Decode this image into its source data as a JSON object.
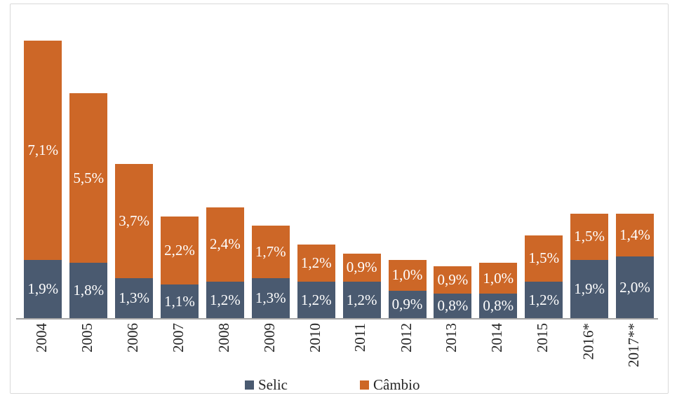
{
  "chart_data": {
    "type": "bar",
    "stacked": true,
    "title": "",
    "xlabel": "",
    "ylabel": "",
    "ylim": [
      0,
      9.5
    ],
    "grid": false,
    "legend_position": "bottom",
    "value_format": "percent, comma decimal",
    "categories": [
      "2004",
      "2005",
      "2006",
      "2007",
      "2008",
      "2009",
      "2010",
      "2011",
      "2012",
      "2013",
      "2014",
      "2015",
      "2016*",
      "2017**"
    ],
    "series": [
      {
        "name": "Selic",
        "color": "#4A5A70",
        "values": [
          1.9,
          1.8,
          1.3,
          1.1,
          1.2,
          1.3,
          1.2,
          1.2,
          0.9,
          0.8,
          0.8,
          1.2,
          1.9,
          2.0
        ],
        "labels": [
          "1,9%",
          "1,8%",
          "1,3%",
          "1,1%",
          "1,2%",
          "1,3%",
          "1,2%",
          "1,2%",
          "0,9%",
          "0,8%",
          "0,8%",
          "1,2%",
          "1,9%",
          "2,0%"
        ]
      },
      {
        "name": "Câmbio",
        "color": "#CD6727",
        "values": [
          7.1,
          5.5,
          3.7,
          2.2,
          2.4,
          1.7,
          1.2,
          0.9,
          1.0,
          0.9,
          1.0,
          1.5,
          1.5,
          1.4
        ],
        "labels": [
          "7,1%",
          "5,5%",
          "3,7%",
          "2,2%",
          "2,4%",
          "1,7%",
          "1,2%",
          "0,9%",
          "1,0%",
          "0,9%",
          "1,0%",
          "1,5%",
          "1,5%",
          "1,4%"
        ]
      }
    ],
    "value_label_color": "#FFFFFF"
  },
  "colors": {
    "axis_line": "#A6A6A6",
    "frame_border": "#D9D9D9",
    "tick_text": "#262626",
    "background": "#FFFFFF"
  }
}
